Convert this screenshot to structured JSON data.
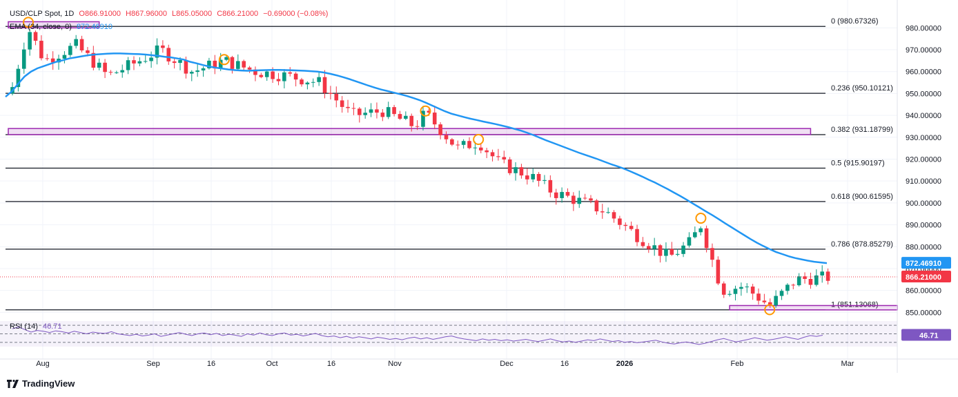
{
  "header": {
    "symbol": "USD/CLP Spot, 1D",
    "open": "O866.91000",
    "high": "H867.96000",
    "low": "L865.05000",
    "close": "C866.21000",
    "change": "−0.69000 (−0.08%)",
    "ema_label": "EMA (34, close, 0)",
    "ema_value": "872.46910"
  },
  "rsi": {
    "label": "RSI (14)",
    "value": "46.71",
    "badge": "46.71"
  },
  "footer": {
    "brand": "TradingView"
  },
  "colors": {
    "up": "#089981",
    "down": "#f23645",
    "ema": "#2196f3",
    "rsi": "#7e57c2",
    "zone": "#9c27b0",
    "marker": "#ff9800"
  },
  "chart_data": {
    "type": "candlestick",
    "symbol": "USD/CLP",
    "interval": "1D",
    "ylim": [
      846,
      988
    ],
    "y_ticks": [
      850,
      860,
      870,
      880,
      890,
      900,
      910,
      920,
      930,
      940,
      950,
      960,
      970,
      980
    ],
    "y_tick_labels": [
      "850.00000",
      "860.00000",
      "870.00000",
      "880.00000",
      "890.00000",
      "900.00000",
      "910.00000",
      "920.00000",
      "930.00000",
      "940.00000",
      "950.00000",
      "960.00000",
      "970.00000",
      "980.00000"
    ],
    "x_labels": [
      "Aug",
      "Sep",
      "16",
      "Oct",
      "16",
      "Nov",
      "Dec",
      "16",
      "2026",
      "Feb",
      "Mar"
    ],
    "fib_levels": [
      {
        "label": "0 (980.67326)",
        "value": 980.67
      },
      {
        "label": "0.236 (950.10121)",
        "value": 950.1
      },
      {
        "label": "0.382 (931.18799)",
        "value": 931.19
      },
      {
        "label": "0.5 (915.90197)",
        "value": 915.9
      },
      {
        "label": "0.618 (900.61595)",
        "value": 900.62
      },
      {
        "label": "0.786 (878.85279)",
        "value": 878.85
      },
      {
        "label": "1 (851.13068)",
        "value": 851.13
      }
    ],
    "zones": [
      {
        "from_index": 0,
        "to_index": 15,
        "low": 980.0,
        "high": 982.8
      },
      {
        "from_index": 0,
        "to_index": 138,
        "low": 931.2,
        "high": 934.0
      },
      {
        "from_index": 124,
        "to_index": 153,
        "low": 851.1,
        "high": 853.1
      }
    ],
    "markers": [
      {
        "index": 3,
        "value": 982.5
      },
      {
        "index": 40,
        "value": 965.5
      },
      {
        "index": 78,
        "value": 942.0
      },
      {
        "index": 88,
        "value": 929.0
      },
      {
        "index": 130,
        "value": 893.0
      },
      {
        "index": 143,
        "value": 851.2
      }
    ],
    "last_price": 866.21,
    "last_price_label": "866.21000",
    "ema_last": 872.47,
    "ema_last_label": "872.46910",
    "ema_34": [
      948.5,
      951.0,
      954.5,
      957.8,
      960.0,
      961.5,
      962.5,
      963.5,
      964.5,
      965.2,
      966.0,
      966.5,
      967.0,
      967.5,
      967.8,
      968.0,
      968.2,
      968.3,
      968.3,
      968.2,
      968.1,
      968.0,
      967.8,
      967.5,
      967.2,
      966.8,
      966.5,
      966.0,
      965.5,
      964.5,
      963.8,
      963.0,
      962.3,
      961.8,
      961.4,
      961.0,
      960.7,
      960.5,
      960.4,
      960.5,
      960.6,
      960.7,
      960.8,
      960.8,
      960.7,
      960.6,
      960.5,
      960.4,
      960.2,
      960.0,
      959.6,
      959.0,
      958.3,
      957.5,
      956.6,
      955.6,
      954.6,
      953.6,
      952.7,
      951.8,
      951.1,
      950.4,
      949.7,
      948.9,
      948.0,
      947.0,
      945.8,
      944.5,
      943.2,
      941.9,
      940.8,
      940.0,
      939.2,
      938.5,
      937.9,
      937.2,
      936.6,
      936.0,
      935.3,
      934.6,
      933.8,
      933.0,
      932.0,
      930.9,
      929.7,
      928.5,
      927.4,
      926.3,
      925.2,
      924.1,
      923.0,
      922.0,
      921.0,
      920.0,
      918.9,
      917.8,
      916.8,
      915.8,
      914.6,
      913.3,
      912.0,
      910.6,
      909.3,
      907.8,
      906.3,
      904.7,
      903.1,
      901.4,
      899.6,
      897.9,
      896.1,
      894.4,
      892.6,
      890.7,
      888.9,
      887.1,
      885.3,
      883.5,
      881.8,
      880.3,
      878.9,
      877.6,
      876.6,
      875.6,
      874.8,
      874.2,
      873.6,
      873.1,
      872.8,
      872.47
    ],
    "rsi_14": [
      62,
      66,
      60,
      54,
      58,
      56,
      53,
      57,
      55,
      52,
      56,
      53,
      50,
      54,
      52,
      51,
      55,
      50,
      48,
      46,
      49,
      45,
      47,
      50,
      44,
      47,
      50,
      53,
      49,
      46,
      50,
      52,
      48,
      51,
      46,
      49,
      47,
      44,
      50,
      47,
      52,
      48,
      46,
      50,
      52,
      47,
      49,
      45,
      48,
      51,
      46,
      43,
      45,
      41,
      44,
      40,
      43,
      41,
      38,
      42,
      40,
      37,
      39,
      36,
      40,
      42,
      38,
      41,
      37,
      40,
      43,
      45,
      41,
      38,
      36,
      34,
      38,
      35,
      37,
      34,
      36,
      33,
      35,
      37,
      34,
      32,
      35,
      38,
      34,
      31,
      33,
      30,
      33,
      36,
      34,
      38,
      35,
      32,
      34,
      30,
      32,
      29,
      31,
      33,
      35,
      31,
      28,
      26,
      29,
      31,
      28,
      25,
      28,
      32,
      36,
      39,
      35,
      31,
      34,
      37,
      41,
      38,
      35,
      37,
      40,
      43,
      40,
      37,
      42,
      46,
      44,
      46.71
    ]
  }
}
